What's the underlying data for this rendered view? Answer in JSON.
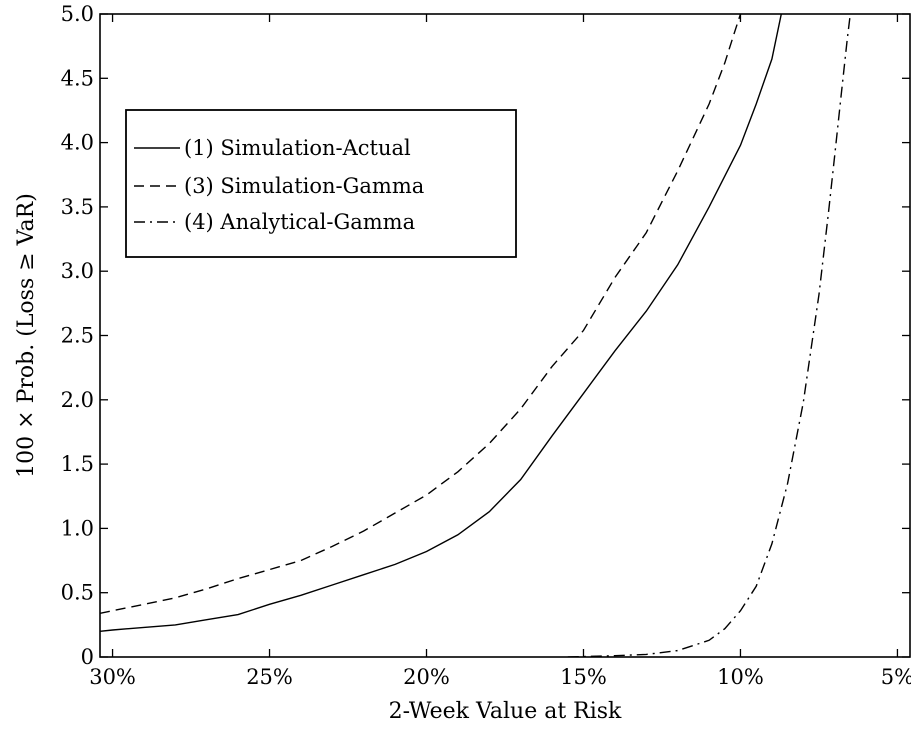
{
  "chart_data": {
    "type": "line",
    "title": "",
    "xlabel": "2-Week Value at Risk",
    "ylabel": "100 × Prob. (Loss ≥ VaR)",
    "x_reversed": true,
    "xlim": [
      30.4,
      4.6
    ],
    "ylim": [
      0,
      5.0
    ],
    "x_ticks": [
      30,
      25,
      20,
      15,
      10,
      5
    ],
    "x_tick_labels": [
      "30%",
      "25%",
      "20%",
      "15%",
      "10%",
      "5%"
    ],
    "y_ticks": [
      0,
      0.5,
      1.0,
      1.5,
      2.0,
      2.5,
      3.0,
      3.5,
      4.0,
      4.5,
      5.0
    ],
    "y_tick_labels": [
      "0",
      "0.5",
      "1.0",
      "1.5",
      "2.0",
      "2.5",
      "3.0",
      "3.5",
      "4.0",
      "4.5",
      "5.0"
    ],
    "grid": false,
    "legend_position": "upper-left",
    "series": [
      {
        "name": "(1) Simulation-Actual",
        "style": "solid",
        "x": [
          30.4,
          30,
          29,
          28,
          27,
          26,
          25,
          24,
          23,
          22,
          21,
          20,
          19,
          18,
          17,
          16,
          15,
          14,
          13,
          12,
          11,
          10,
          9.5,
          9,
          8.7
        ],
        "y": [
          0.2,
          0.21,
          0.23,
          0.25,
          0.29,
          0.33,
          0.41,
          0.48,
          0.56,
          0.64,
          0.72,
          0.82,
          0.95,
          1.13,
          1.38,
          1.72,
          2.05,
          2.38,
          2.69,
          3.05,
          3.5,
          3.98,
          4.3,
          4.65,
          5.0
        ]
      },
      {
        "name": "(3) Simulation-Gamma",
        "style": "dashed",
        "x": [
          30.4,
          30,
          29,
          28,
          27,
          26,
          25,
          24,
          23,
          22,
          21,
          20,
          19,
          18,
          17,
          16,
          15,
          14,
          13,
          12,
          11,
          10.5,
          10.2,
          10.0
        ],
        "y": [
          0.34,
          0.36,
          0.41,
          0.46,
          0.53,
          0.61,
          0.68,
          0.75,
          0.86,
          0.98,
          1.12,
          1.26,
          1.44,
          1.66,
          1.93,
          2.26,
          2.54,
          2.95,
          3.3,
          3.78,
          4.3,
          4.62,
          4.85,
          5.0
        ]
      },
      {
        "name": "(4) Analytical-Gamma",
        "style": "dashdot",
        "x": [
          15.5,
          14,
          13,
          12,
          11,
          10.5,
          10,
          9.5,
          9,
          8.5,
          8,
          7.5,
          7.2,
          7,
          6.8,
          6.6,
          6.5
        ],
        "y": [
          0,
          0.01,
          0.02,
          0.05,
          0.13,
          0.22,
          0.36,
          0.55,
          0.88,
          1.35,
          1.98,
          2.82,
          3.45,
          3.9,
          4.35,
          4.8,
          5.0
        ]
      }
    ]
  }
}
